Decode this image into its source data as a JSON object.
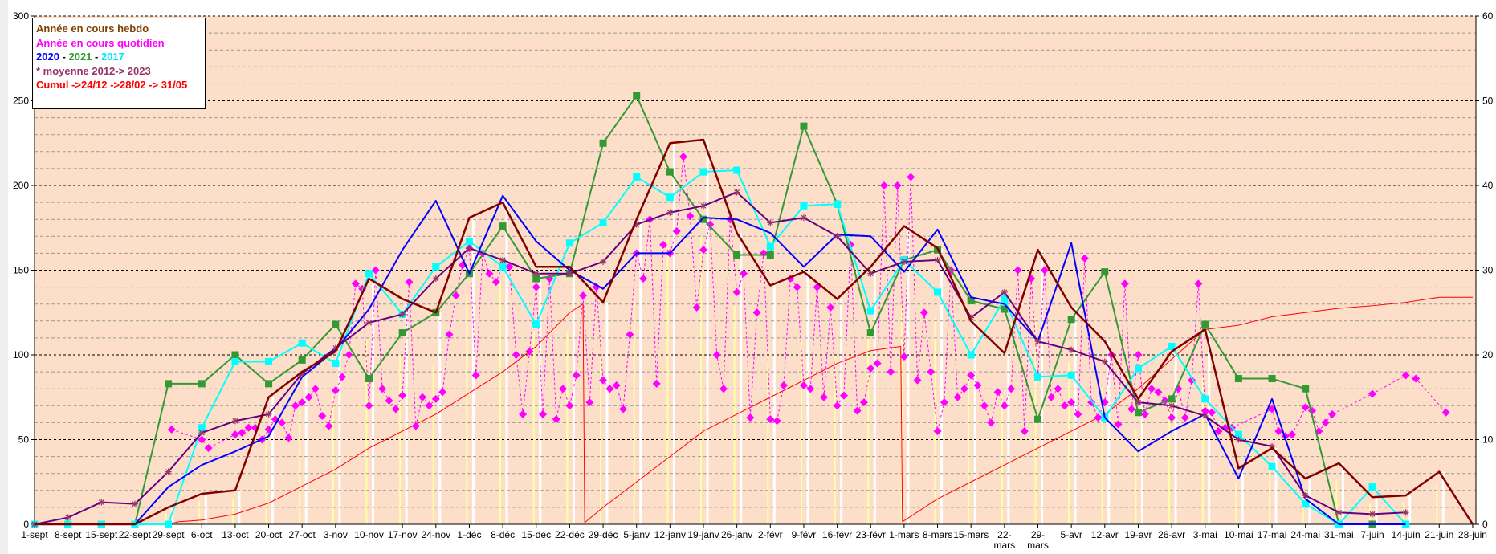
{
  "chart_data": {
    "type": "line",
    "legend_placement": "top-left",
    "legend": {
      "line1": "Année en cours hebdo",
      "line2": "Année en cours quotidien",
      "y2020": "2020",
      "sep1": " - ",
      "y2021": "2021",
      "sep2": " - ",
      "y2017": "2017",
      "line4": "* moyenne 2012-> 2023",
      "line5": "Cumul ->24/12 ->28/02 -> 31/05"
    },
    "colors": {
      "hebdo": "#800000",
      "quotidien": "#ff00ff",
      "s2020": "#0000ff",
      "s2021": "#339933",
      "s2017": "#00ffff",
      "moyenne": "#660080",
      "cumul": "#ff0000",
      "plot_bg": "#fddfc9"
    },
    "ylim": [
      0,
      300
    ],
    "y2lim": [
      0,
      60
    ],
    "yticks": [
      "0",
      "50",
      "100",
      "150",
      "200",
      "250",
      "300"
    ],
    "y2ticks": [
      "0",
      "10",
      "20",
      "30",
      "40",
      "50",
      "60"
    ],
    "categories": [
      "1-sept",
      "8-sept",
      "15-sept",
      "22-sept",
      "29-sept",
      "6-oct",
      "13-oct",
      "20-oct",
      "27-oct",
      "3-nov",
      "10-nov",
      "17-nov",
      "24-nov",
      "1-déc",
      "8-déc",
      "15-déc",
      "22-déc",
      "29-déc",
      "5-janv",
      "12-janv",
      "19-janv",
      "26-janv",
      "2-févr",
      "9-févr",
      "16-févr",
      "23-févr",
      "1-mars",
      "8-mars",
      "15-mars",
      "22-\nmars",
      "29-\nmars",
      "5-avr",
      "12-avr",
      "19-avr",
      "26-avr",
      "3-mai",
      "10-mai",
      "17-mai",
      "24-mai",
      "31-mai",
      "7-juin",
      "14-juin",
      "21-juin",
      "28-juin"
    ],
    "series": [
      {
        "name": "Année en cours hebdo",
        "key": "hebdo",
        "axis": "left",
        "marker": "none",
        "width": 2.5,
        "values": [
          0,
          0,
          0,
          0,
          10,
          18,
          20,
          75,
          90,
          102,
          145,
          133,
          125,
          181,
          190,
          152,
          152,
          131,
          180,
          225,
          227,
          172,
          141,
          149,
          133,
          152,
          176,
          163,
          120,
          101,
          162,
          128,
          108,
          74,
          102,
          115,
          33,
          45,
          27,
          36,
          16,
          17,
          31,
          0
        ]
      },
      {
        "name": "2021",
        "key": "s2021",
        "axis": "left",
        "marker": "square",
        "width": 2,
        "values": [
          0,
          0,
          0,
          0,
          83,
          83,
          100,
          83,
          97,
          118,
          86,
          113,
          125,
          148,
          176,
          145,
          148,
          225,
          253,
          208,
          180,
          159,
          159,
          235,
          189,
          113,
          156,
          162,
          132,
          127,
          62,
          121,
          149,
          66,
          74,
          118,
          86,
          86,
          80,
          0,
          0,
          null,
          null,
          null
        ]
      },
      {
        "name": "2020",
        "key": "s2020",
        "axis": "left",
        "marker": "none",
        "width": 2,
        "values": [
          0,
          0,
          0,
          0,
          22,
          35,
          43,
          52,
          87,
          103,
          127,
          162,
          191,
          148,
          194,
          167,
          150,
          139,
          160,
          160,
          181,
          180,
          172,
          152,
          171,
          170,
          149,
          174,
          134,
          130,
          108,
          166,
          63,
          43,
          55,
          65,
          27,
          74,
          15,
          0,
          0,
          0,
          null,
          null
        ]
      },
      {
        "name": "2017",
        "key": "s2017",
        "axis": "left",
        "marker": "square",
        "width": 2,
        "values": [
          0,
          0,
          0,
          0,
          0,
          57,
          96,
          96,
          107,
          95,
          148,
          124,
          152,
          167,
          152,
          118,
          166,
          178,
          205,
          193,
          208,
          209,
          164,
          188,
          189,
          126,
          156,
          137,
          100,
          133,
          87,
          88,
          63,
          92,
          105,
          74,
          53,
          34,
          12,
          0,
          22,
          0,
          null,
          null
        ]
      },
      {
        "name": "moyenne 2012-> 2023",
        "key": "moyenne",
        "axis": "left",
        "marker": "star",
        "width": 2,
        "values": [
          0,
          4,
          13,
          12,
          31,
          54,
          61,
          65,
          89,
          104,
          119,
          124,
          145,
          163,
          156,
          148,
          148,
          155,
          177,
          184,
          188,
          196,
          178,
          181,
          170,
          148,
          155,
          156,
          122,
          137,
          108,
          103,
          96,
          72,
          70,
          64,
          50,
          46,
          17,
          7,
          6,
          7,
          null,
          null
        ]
      },
      {
        "name": "Cumul",
        "key": "cumul",
        "axis": "right",
        "marker": "none",
        "width": 1,
        "x": [
          0,
          4,
          4.3,
          5,
          6,
          7,
          8,
          9,
          10,
          11,
          12,
          13,
          14,
          15,
          16,
          16.4,
          16.45,
          17,
          18,
          19,
          20,
          21,
          22,
          23,
          24,
          25,
          25.9,
          25.95,
          27,
          28,
          29,
          30,
          31,
          32,
          33,
          34,
          35,
          36,
          37,
          38,
          39,
          40,
          41,
          42,
          43
        ],
        "values": [
          0,
          0,
          0.3,
          0.5,
          1.2,
          2.5,
          4.5,
          6.5,
          9,
          11,
          13,
          15.5,
          18,
          21,
          25,
          26,
          0.2,
          2,
          5,
          8,
          11,
          13,
          15,
          17,
          19,
          20.5,
          21,
          0.3,
          3,
          5,
          7,
          9,
          11,
          13,
          16,
          19.5,
          23,
          23.5,
          24.5,
          25,
          25.5,
          25.8,
          26.2,
          26.8,
          26.8
        ]
      },
      {
        "name": "Année en cours quotidien",
        "key": "quotidien",
        "axis": "left",
        "marker": "diamond",
        "points": [
          [
            4.1,
            56
          ],
          [
            5.0,
            50
          ],
          [
            5.2,
            45
          ],
          [
            6.0,
            53
          ],
          [
            6.2,
            54
          ],
          [
            6.4,
            57
          ],
          [
            6.6,
            57
          ],
          [
            6.8,
            50
          ],
          [
            7.0,
            56
          ],
          [
            7.2,
            62
          ],
          [
            7.4,
            60
          ],
          [
            7.6,
            51
          ],
          [
            7.8,
            70
          ],
          [
            8.0,
            72
          ],
          [
            8.2,
            75
          ],
          [
            8.4,
            80
          ],
          [
            8.6,
            64
          ],
          [
            8.8,
            58
          ],
          [
            9.0,
            79
          ],
          [
            9.2,
            87
          ],
          [
            9.4,
            100
          ],
          [
            9.6,
            142
          ],
          [
            9.8,
            139
          ],
          [
            10.0,
            70
          ],
          [
            10.2,
            150
          ],
          [
            10.4,
            80
          ],
          [
            10.6,
            73
          ],
          [
            10.8,
            68
          ],
          [
            11.0,
            76
          ],
          [
            11.2,
            143
          ],
          [
            11.4,
            58
          ],
          [
            11.6,
            75
          ],
          [
            11.8,
            70
          ],
          [
            12.0,
            74
          ],
          [
            12.2,
            78
          ],
          [
            12.4,
            112
          ],
          [
            12.6,
            135
          ],
          [
            12.8,
            153
          ],
          [
            13.0,
            163
          ],
          [
            13.2,
            88
          ],
          [
            13.4,
            160
          ],
          [
            13.6,
            148
          ],
          [
            13.8,
            143
          ],
          [
            14.0,
            153
          ],
          [
            14.2,
            152
          ],
          [
            14.4,
            100
          ],
          [
            14.6,
            65
          ],
          [
            14.8,
            102
          ],
          [
            15.0,
            140
          ],
          [
            15.2,
            65
          ],
          [
            15.4,
            145
          ],
          [
            15.6,
            62
          ],
          [
            15.8,
            80
          ],
          [
            16.0,
            70
          ],
          [
            16.2,
            88
          ],
          [
            16.4,
            135
          ],
          [
            16.6,
            72
          ],
          [
            16.8,
            140
          ],
          [
            17.0,
            85
          ],
          [
            17.2,
            80
          ],
          [
            17.4,
            82
          ],
          [
            17.6,
            68
          ],
          [
            17.8,
            112
          ],
          [
            18.0,
            160
          ],
          [
            18.2,
            145
          ],
          [
            18.4,
            180
          ],
          [
            18.6,
            83
          ],
          [
            18.8,
            165
          ],
          [
            19.0,
            160
          ],
          [
            19.2,
            173
          ],
          [
            19.4,
            217
          ],
          [
            19.6,
            182
          ],
          [
            19.8,
            128
          ],
          [
            20.0,
            162
          ],
          [
            20.2,
            177
          ],
          [
            20.4,
            100
          ],
          [
            20.6,
            80
          ],
          [
            20.8,
            180
          ],
          [
            21.0,
            137
          ],
          [
            21.2,
            148
          ],
          [
            21.4,
            63
          ],
          [
            21.6,
            125
          ],
          [
            21.8,
            160
          ],
          [
            22.0,
            62
          ],
          [
            22.2,
            61
          ],
          [
            22.4,
            82
          ],
          [
            22.6,
            145
          ],
          [
            22.8,
            140
          ],
          [
            23.0,
            82
          ],
          [
            23.2,
            80
          ],
          [
            23.4,
            140
          ],
          [
            23.6,
            75
          ],
          [
            23.8,
            128
          ],
          [
            24.0,
            70
          ],
          [
            24.2,
            76
          ],
          [
            24.4,
            165
          ],
          [
            24.6,
            67
          ],
          [
            24.8,
            72
          ],
          [
            25.0,
            92
          ],
          [
            25.2,
            95
          ],
          [
            25.4,
            200
          ],
          [
            25.6,
            90
          ],
          [
            25.8,
            200
          ],
          [
            26.0,
            99
          ],
          [
            26.2,
            205
          ],
          [
            26.4,
            85
          ],
          [
            26.6,
            125
          ],
          [
            26.8,
            90
          ],
          [
            27.0,
            55
          ],
          [
            27.2,
            72
          ],
          [
            27.4,
            150
          ],
          [
            27.6,
            75
          ],
          [
            27.8,
            80
          ],
          [
            28.0,
            88
          ],
          [
            28.2,
            82
          ],
          [
            28.4,
            70
          ],
          [
            28.6,
            60
          ],
          [
            28.8,
            78
          ],
          [
            29.0,
            70
          ],
          [
            29.2,
            80
          ],
          [
            29.4,
            150
          ],
          [
            29.6,
            55
          ],
          [
            29.8,
            145
          ],
          [
            30.0,
            88
          ],
          [
            30.2,
            150
          ],
          [
            30.4,
            75
          ],
          [
            30.6,
            80
          ],
          [
            30.8,
            70
          ],
          [
            31.0,
            72
          ],
          [
            31.2,
            65
          ],
          [
            31.4,
            157
          ],
          [
            31.6,
            72
          ],
          [
            31.8,
            63
          ],
          [
            32.0,
            72
          ],
          [
            32.2,
            100
          ],
          [
            32.4,
            59
          ],
          [
            32.6,
            142
          ],
          [
            32.8,
            68
          ],
          [
            33.0,
            100
          ],
          [
            33.2,
            65
          ],
          [
            33.4,
            80
          ],
          [
            33.6,
            78
          ],
          [
            33.8,
            73
          ],
          [
            34.0,
            63
          ],
          [
            34.2,
            80
          ],
          [
            34.4,
            63
          ],
          [
            34.6,
            85
          ],
          [
            34.8,
            142
          ],
          [
            35.0,
            67
          ],
          [
            35.2,
            66
          ],
          [
            35.4,
            55
          ],
          [
            35.6,
            57
          ],
          [
            35.8,
            57
          ],
          [
            37.0,
            68
          ],
          [
            37.2,
            55
          ],
          [
            37.4,
            52
          ],
          [
            37.6,
            53
          ],
          [
            38.0,
            69
          ],
          [
            38.2,
            67
          ],
          [
            38.4,
            55
          ],
          [
            38.6,
            60
          ],
          [
            38.8,
            65
          ],
          [
            40.0,
            77
          ],
          [
            41.0,
            88
          ],
          [
            41.3,
            86
          ],
          [
            42.2,
            66
          ]
        ]
      }
    ]
  }
}
